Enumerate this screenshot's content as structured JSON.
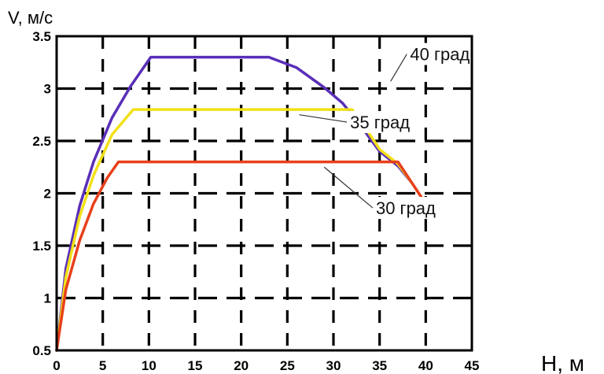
{
  "chart_data": {
    "type": "line",
    "title": "",
    "xlabel": "H, м",
    "ylabel": "V, м/с",
    "xlim": [
      0,
      45
    ],
    "ylim": [
      0.5,
      3.5
    ],
    "xticks": [
      "0",
      "5",
      "10",
      "15",
      "20",
      "25",
      "30",
      "35",
      "40",
      "45"
    ],
    "yticks": [
      "0.5",
      "1",
      "1.5",
      "2",
      "2.5",
      "3",
      "3.5"
    ],
    "grid": true,
    "legend": "none",
    "series": [
      {
        "name": "40 град",
        "color": "#5a2fb8",
        "points": [
          [
            0,
            0.5
          ],
          [
            1,
            1.28
          ],
          [
            2.5,
            1.88
          ],
          [
            4,
            2.3
          ],
          [
            6,
            2.72
          ],
          [
            8,
            3.02
          ],
          [
            10.2,
            3.3
          ],
          [
            23,
            3.3
          ],
          [
            26,
            3.2
          ],
          [
            29,
            3.01
          ],
          [
            31,
            2.86
          ],
          [
            33,
            2.64
          ],
          [
            35,
            2.4
          ],
          [
            37,
            2.26
          ],
          [
            38.5,
            2.1
          ],
          [
            40,
            1.9
          ]
        ]
      },
      {
        "name": "35 град",
        "color": "#f2e018",
        "points": [
          [
            0,
            0.5
          ],
          [
            1,
            1.2
          ],
          [
            2.5,
            1.78
          ],
          [
            4,
            2.17
          ],
          [
            6,
            2.56
          ],
          [
            8.3,
            2.8
          ],
          [
            32,
            2.8
          ],
          [
            33.5,
            2.62
          ],
          [
            35,
            2.42
          ],
          [
            37,
            2.28
          ],
          [
            38.5,
            2.1
          ],
          [
            40,
            1.9
          ]
        ]
      },
      {
        "name": "30 град",
        "color": "#e8401c",
        "points": [
          [
            0,
            0.5
          ],
          [
            1,
            1.08
          ],
          [
            2.5,
            1.55
          ],
          [
            4,
            1.9
          ],
          [
            5.5,
            2.15
          ],
          [
            6.7,
            2.3
          ],
          [
            37,
            2.3
          ],
          [
            38.5,
            2.1
          ],
          [
            40,
            1.9
          ]
        ]
      }
    ],
    "annotations": [
      {
        "text": "40 град",
        "x": 38.3,
        "y": 3.27,
        "points_to": [
          36.2,
          3.07
        ]
      },
      {
        "text": "35 град",
        "x": 31.8,
        "y": 2.62,
        "points_to": [
          26.3,
          2.75
        ]
      },
      {
        "text": "30 град",
        "x": 34.6,
        "y": 1.8,
        "points_to": [
          29,
          2.25
        ]
      }
    ]
  }
}
